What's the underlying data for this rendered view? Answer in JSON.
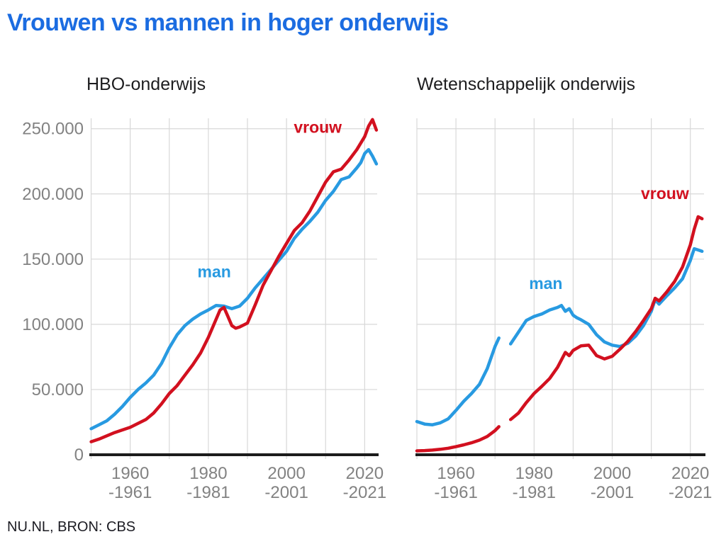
{
  "header": {
    "title": "Vrouwen vs mannen in hoger onderwijs"
  },
  "footer": {
    "source": "NU.NL, BRON: CBS"
  },
  "colors": {
    "title": "#1b6ce1",
    "man": "#289ae1",
    "vrouw": "#d2101f",
    "grid": "#d8d8d8",
    "axis": "#1c1c1c",
    "tick_label": "#828282",
    "chart_title": "#1d1d1f",
    "footer_text": "#1b1b22"
  },
  "chart_data": [
    {
      "type": "line",
      "id": "hbo",
      "title": "HBO-onderwijs",
      "x_domain": [
        1949.9,
        2023.2
      ],
      "y_domain": [
        0,
        258000
      ],
      "grid_years": [
        1950,
        1960,
        1970,
        1980,
        1990,
        2000,
        2010,
        2020
      ],
      "x_ticks": [
        {
          "year": 1960,
          "line1": "1960",
          "line2": "-1961"
        },
        {
          "year": 1980,
          "line1": "1980",
          "line2": "-1981"
        },
        {
          "year": 2000,
          "line1": "2000",
          "line2": "-2001"
        },
        {
          "year": 2020,
          "line1": "2020",
          "line2": "-2021"
        }
      ],
      "y_ticks": [
        {
          "value": 0,
          "label": "0"
        },
        {
          "value": 50000,
          "label": "50.000"
        },
        {
          "value": 100000,
          "label": "100.000"
        },
        {
          "value": 150000,
          "label": "150.000"
        },
        {
          "value": 200000,
          "label": "200.000"
        },
        {
          "value": 250000,
          "label": "250.000"
        }
      ],
      "show_y_labels": true,
      "legend_position": "inline-labels",
      "grid": true,
      "series": [
        {
          "name": "man",
          "label": "man",
          "color_key": "man",
          "label_at": {
            "year": 1981.5,
            "value": 136000
          },
          "segments": [
            [
              [
                1950,
                20000
              ],
              [
                1952,
                23000
              ],
              [
                1954,
                26000
              ],
              [
                1956,
                31000
              ],
              [
                1958,
                37000
              ],
              [
                1960,
                44000
              ],
              [
                1962,
                50000
              ],
              [
                1964,
                55000
              ],
              [
                1966,
                61000
              ],
              [
                1968,
                70000
              ],
              [
                1970,
                82000
              ],
              [
                1972,
                92000
              ],
              [
                1974,
                99000
              ],
              [
                1976,
                104000
              ],
              [
                1978,
                108000
              ],
              [
                1980,
                111000
              ],
              [
                1982,
                114500
              ],
              [
                1984,
                114000
              ],
              [
                1986,
                112000
              ],
              [
                1988,
                114000
              ],
              [
                1990,
                120000
              ],
              [
                1992,
                128000
              ],
              [
                1994,
                135000
              ],
              [
                1996,
                142000
              ],
              [
                1998,
                149000
              ],
              [
                2000,
                156000
              ],
              [
                2002,
                166000
              ],
              [
                2004,
                173000
              ],
              [
                2006,
                179000
              ],
              [
                2008,
                186000
              ],
              [
                2010,
                195000
              ],
              [
                2012,
                202000
              ],
              [
                2014,
                211000
              ],
              [
                2016,
                213000
              ],
              [
                2018,
                220000
              ],
              [
                2019,
                224000
              ],
              [
                2020,
                231000
              ],
              [
                2021,
                234000
              ],
              [
                2022,
                229000
              ],
              [
                2023,
                223000
              ]
            ]
          ]
        },
        {
          "name": "vrouw",
          "label": "vrouw",
          "color_key": "vrouw",
          "label_at": {
            "year": 2008,
            "value": 247000
          },
          "segments": [
            [
              [
                1950,
                10000
              ],
              [
                1952,
                12000
              ],
              [
                1954,
                14500
              ],
              [
                1956,
                17000
              ],
              [
                1958,
                19000
              ],
              [
                1960,
                21000
              ],
              [
                1962,
                24000
              ],
              [
                1964,
                27000
              ],
              [
                1966,
                32000
              ],
              [
                1968,
                39000
              ],
              [
                1970,
                47000
              ],
              [
                1972,
                53000
              ],
              [
                1974,
                61000
              ],
              [
                1976,
                69000
              ],
              [
                1978,
                78000
              ],
              [
                1980,
                90000
              ],
              [
                1981,
                97000
              ],
              [
                1982,
                104000
              ],
              [
                1983,
                111000
              ],
              [
                1984,
                113000
              ],
              [
                1985,
                106000
              ],
              [
                1986,
                99000
              ],
              [
                1987,
                97000
              ],
              [
                1988,
                98000
              ],
              [
                1990,
                101000
              ],
              [
                1992,
                115000
              ],
              [
                1994,
                130000
              ],
              [
                1996,
                141000
              ],
              [
                1998,
                152000
              ],
              [
                2000,
                162000
              ],
              [
                2002,
                172000
              ],
              [
                2004,
                178000
              ],
              [
                2006,
                187000
              ],
              [
                2008,
                198000
              ],
              [
                2010,
                209000
              ],
              [
                2012,
                217000
              ],
              [
                2014,
                219000
              ],
              [
                2016,
                226000
              ],
              [
                2018,
                234000
              ],
              [
                2020,
                244000
              ],
              [
                2021,
                252000
              ],
              [
                2022,
                257000
              ],
              [
                2023,
                249000
              ]
            ]
          ]
        }
      ]
    },
    {
      "type": "line",
      "id": "wo",
      "title": "Wetenschappelijk onderwijs",
      "x_domain": [
        1950.0,
        2023.5
      ],
      "y_domain": [
        0,
        258000
      ],
      "grid_years": [
        1950,
        1960,
        1970,
        1980,
        1990,
        2000,
        2010,
        2020
      ],
      "x_ticks": [
        {
          "year": 1960,
          "line1": "1960",
          "line2": "-1961"
        },
        {
          "year": 1980,
          "line1": "1980",
          "line2": "-1981"
        },
        {
          "year": 2000,
          "line1": "2000",
          "line2": "-2001"
        },
        {
          "year": 2020,
          "line1": "2020",
          "line2": "-2021"
        }
      ],
      "y_ticks": [
        {
          "value": 0,
          "label": "0"
        },
        {
          "value": 50000,
          "label": "50.000"
        },
        {
          "value": 100000,
          "label": "100.000"
        },
        {
          "value": 150000,
          "label": "150.000"
        },
        {
          "value": 200000,
          "label": "200.000"
        },
        {
          "value": 250000,
          "label": "250.000"
        }
      ],
      "show_y_labels": false,
      "legend_position": "inline-labels",
      "grid": true,
      "series": [
        {
          "name": "man",
          "label": "man",
          "color_key": "man",
          "label_at": {
            "year": 1983,
            "value": 127000
          },
          "segments": [
            [
              [
                1950,
                25500
              ],
              [
                1952,
                23500
              ],
              [
                1954,
                23000
              ],
              [
                1956,
                24500
              ],
              [
                1958,
                27500
              ],
              [
                1960,
                34000
              ],
              [
                1962,
                41000
              ],
              [
                1964,
                47000
              ],
              [
                1966,
                54000
              ],
              [
                1968,
                66000
              ],
              [
                1970,
                83000
              ],
              [
                1971,
                89500
              ]
            ],
            [
              [
                1974,
                85000
              ],
              [
                1976,
                94000
              ],
              [
                1978,
                103000
              ],
              [
                1980,
                106000
              ],
              [
                1982,
                108000
              ],
              [
                1984,
                111000
              ],
              [
                1986,
                113000
              ],
              [
                1987,
                114500
              ],
              [
                1988,
                110000
              ],
              [
                1989,
                112000
              ],
              [
                1990,
                107000
              ],
              [
                1991,
                105000
              ],
              [
                1992,
                103500
              ],
              [
                1994,
                100000
              ],
              [
                1996,
                92000
              ],
              [
                1998,
                86500
              ],
              [
                2000,
                84000
              ],
              [
                2002,
                83000
              ],
              [
                2004,
                85500
              ],
              [
                2006,
                91000
              ],
              [
                2008,
                99000
              ],
              [
                2010,
                110000
              ],
              [
                2011,
                119000
              ],
              [
                2012,
                115500
              ],
              [
                2014,
                122000
              ],
              [
                2016,
                128000
              ],
              [
                2018,
                135000
              ],
              [
                2020,
                149000
              ],
              [
                2021,
                158000
              ],
              [
                2022,
                157000
              ],
              [
                2023,
                156000
              ]
            ]
          ]
        },
        {
          "name": "vrouw",
          "label": "vrouw",
          "color_key": "vrouw",
          "label_at": {
            "year": 2013.5,
            "value": 196000
          },
          "segments": [
            [
              [
                1950,
                3000
              ],
              [
                1952,
                3200
              ],
              [
                1954,
                3600
              ],
              [
                1956,
                4200
              ],
              [
                1958,
                5000
              ],
              [
                1960,
                6200
              ],
              [
                1962,
                7600
              ],
              [
                1964,
                9200
              ],
              [
                1966,
                11200
              ],
              [
                1968,
                14000
              ],
              [
                1970,
                18500
              ],
              [
                1971,
                21500
              ]
            ],
            [
              [
                1974,
                27000
              ],
              [
                1976,
                32000
              ],
              [
                1978,
                40000
              ],
              [
                1980,
                47000
              ],
              [
                1982,
                52500
              ],
              [
                1984,
                58500
              ],
              [
                1986,
                67000
              ],
              [
                1988,
                78500
              ],
              [
                1989,
                76000
              ],
              [
                1990,
                80000
              ],
              [
                1992,
                83500
              ],
              [
                1994,
                84000
              ],
              [
                1996,
                76000
              ],
              [
                1998,
                73500
              ],
              [
                2000,
                75500
              ],
              [
                2002,
                81000
              ],
              [
                2004,
                87000
              ],
              [
                2006,
                94500
              ],
              [
                2008,
                103000
              ],
              [
                2010,
                112000
              ],
              [
                2011,
                120000
              ],
              [
                2012,
                118000
              ],
              [
                2014,
                125000
              ],
              [
                2016,
                133000
              ],
              [
                2018,
                144000
              ],
              [
                2020,
                161000
              ],
              [
                2021,
                173000
              ],
              [
                2022,
                182500
              ],
              [
                2023,
                181000
              ]
            ]
          ]
        }
      ]
    }
  ]
}
